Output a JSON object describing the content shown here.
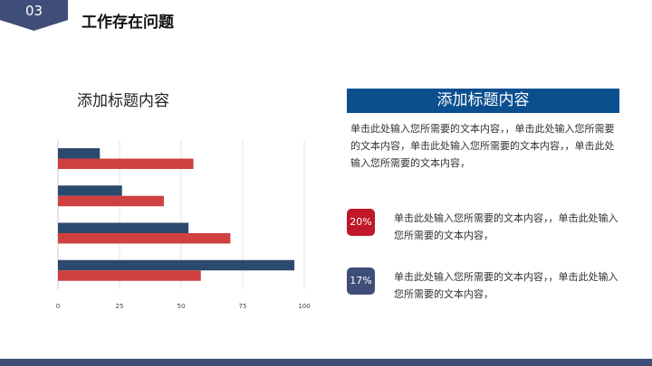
{
  "header": {
    "number": "03",
    "title": "工作存在问题"
  },
  "chart_title": "添加标题内容",
  "chart_data": {
    "type": "bar",
    "orientation": "horizontal",
    "categories": [
      "",
      "",
      "",
      ""
    ],
    "series": [
      {
        "values": [
          17,
          26,
          53,
          96
        ],
        "color": "#2c4a6e"
      },
      {
        "values": [
          55,
          43,
          70,
          58
        ],
        "color": "#d04040"
      }
    ],
    "xticks": [
      "0",
      "25",
      "50",
      "75",
      "100"
    ],
    "xlim": [
      0,
      100
    ],
    "grid": true
  },
  "panel": {
    "heading": "添加标题内容",
    "paragraph": "单击此处输入您所需要的文本内容，，单击此处输入您所需要的文本内容，单击此处输入您所需要的文本内容，，单击此处输入您所需要的文本内容，"
  },
  "items": [
    {
      "percent": "20%",
      "color": "#c0182a",
      "text": "单击此处输入您所需要的文本内容，，单击此处输入您所需要的文本内容，"
    },
    {
      "percent": "17%",
      "color": "#3f4e78",
      "text": "单击此处输入您所需要的文本内容，，单击此处输入您所需要的文本内容，"
    }
  ]
}
